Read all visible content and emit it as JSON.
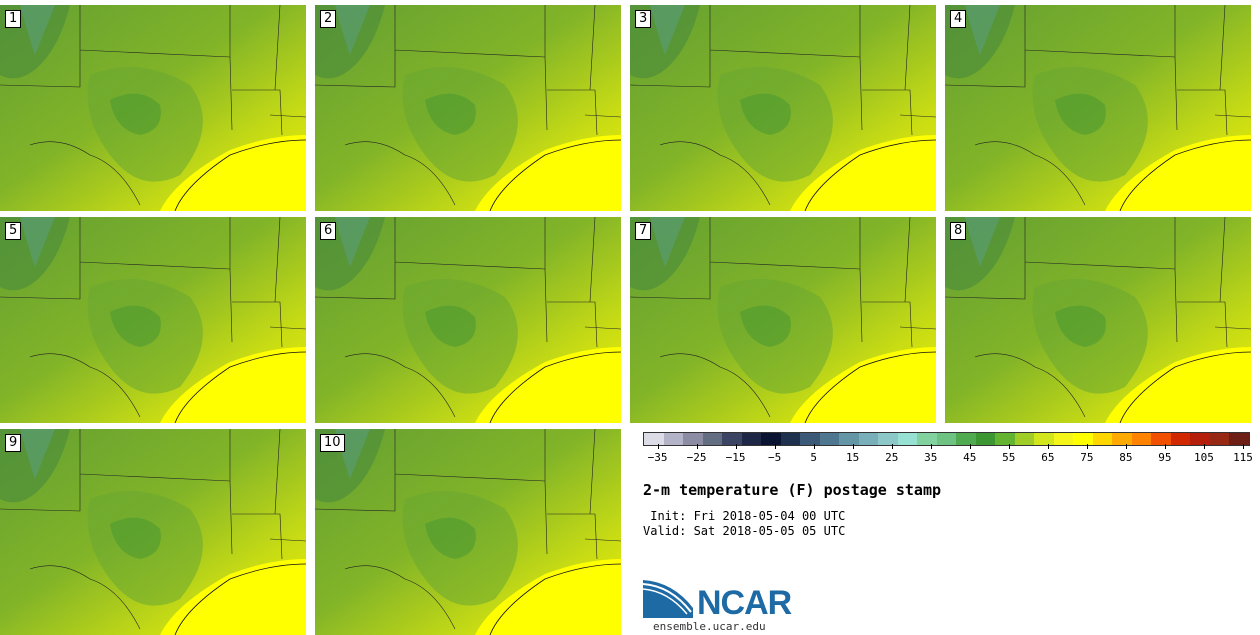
{
  "members": [
    {
      "label": "1"
    },
    {
      "label": "2"
    },
    {
      "label": "3"
    },
    {
      "label": "4"
    },
    {
      "label": "5"
    },
    {
      "label": "6"
    },
    {
      "label": "7"
    },
    {
      "label": "8"
    },
    {
      "label": "9"
    },
    {
      "label": "10"
    }
  ],
  "colorbar": {
    "colors": [
      "#dcdce6",
      "#b4b4c8",
      "#8c8ca4",
      "#646e82",
      "#3c4664",
      "#1e2846",
      "#0a1432",
      "#1e3250",
      "#3c5a78",
      "#4f7890",
      "#6496a5",
      "#78afb9",
      "#8cc8c8",
      "#96e1d2",
      "#82d2a0",
      "#6ec382",
      "#50aa50",
      "#3c9632",
      "#64b432",
      "#a0cd28",
      "#d2e61e",
      "#f5f519",
      "#ffff00",
      "#ffd700",
      "#ffaa00",
      "#ff8200",
      "#f05000",
      "#d22800",
      "#b41e0a",
      "#962814",
      "#6e1e14"
    ],
    "tick_labels": [
      "−35",
      "−25",
      "−15",
      "−5",
      "5",
      "15",
      "25",
      "35",
      "45",
      "55",
      "65",
      "75",
      "85",
      "95",
      "105",
      "115"
    ]
  },
  "title": "2-m temperature (F) postage stamp",
  "init": " Init: Fri 2018-05-04 00 UTC",
  "valid": "Valid: Sat 2018-05-05 05 UTC",
  "logo": {
    "text": "NCAR",
    "url": "ensemble.ucar.edu",
    "color": "#1d6aa5"
  }
}
